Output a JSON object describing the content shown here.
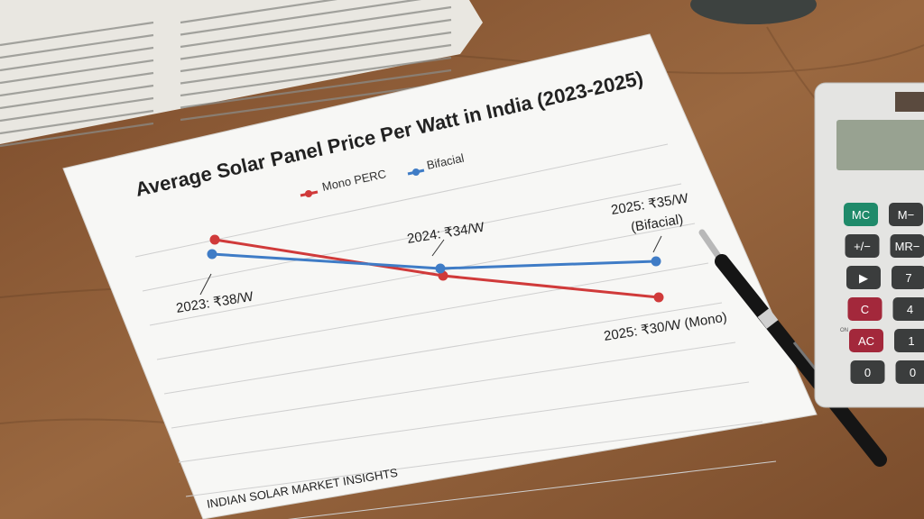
{
  "chart_data": {
    "type": "line",
    "title": "Average Solar Panel Price Per Watt in India (2023-2025)",
    "categories": [
      "2023",
      "2024",
      "2025"
    ],
    "series": [
      {
        "name": "Mono PERC",
        "color": "#d03a3a",
        "values": [
          38,
          33,
          30
        ]
      },
      {
        "name": "Bifacial",
        "color": "#3f7cc6",
        "values": [
          36,
          34,
          35
        ]
      }
    ],
    "annotations": [
      {
        "text": "2023: ₹38/W",
        "series": "Mono PERC",
        "x": "2023"
      },
      {
        "text": "2024: ₹34/W",
        "series": "Bifacial",
        "x": "2024"
      },
      {
        "text_line1": "2025: ₹35/W",
        "text_line2": "(Bifacial)",
        "series": "Bifacial",
        "x": "2025"
      },
      {
        "text": "2025: ₹30/W (Mono)",
        "series": "Mono PERC",
        "x": "2025"
      }
    ],
    "legend": "top",
    "grid": true,
    "footer": "INDIAN SOLAR MARKET INSIGHTS"
  },
  "calculator": {
    "keys": [
      "MC",
      "M−",
      "+/−",
      "MR−",
      "▶",
      "7",
      "C",
      "4",
      "AC",
      "1",
      "0",
      "0"
    ],
    "on_label": "ON"
  }
}
